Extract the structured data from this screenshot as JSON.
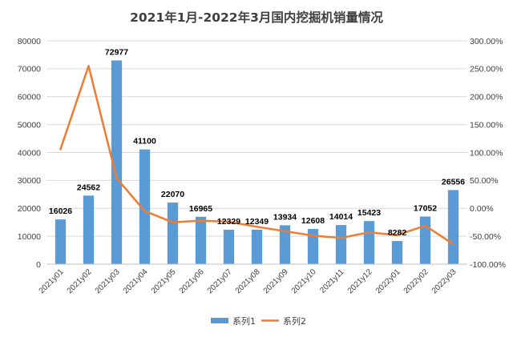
{
  "chart_data": {
    "type": "bar",
    "title": "2021年1月-2022年3月国内挖掘机销量情况",
    "categories": [
      "2021y01",
      "2021y02",
      "2021y03",
      "2021y04",
      "2021y05",
      "2021y06",
      "2021y07",
      "2021y08",
      "2021y09",
      "2021y10",
      "2021y11",
      "2021y12",
      "2022y01",
      "2022y02",
      "2022y03"
    ],
    "series": [
      {
        "name": "系列1",
        "type": "bar",
        "axis": "left",
        "color": "#5B9BD5",
        "values": [
          16026,
          24562,
          72977,
          41100,
          22070,
          16965,
          12329,
          12349,
          13934,
          12608,
          14014,
          15423,
          8282,
          17052,
          26556
        ],
        "labels": [
          "16026",
          "24562",
          "72977",
          "41100",
          "22070",
          "16965",
          "12329",
          "12349",
          "13934",
          "12608",
          "14014",
          "15423",
          "8282",
          "17052",
          "26556"
        ]
      },
      {
        "name": "系列2",
        "type": "line",
        "axis": "right",
        "color": "#ED7D31",
        "values": [
          106.0,
          255.0,
          54.0,
          -5.0,
          -25.0,
          -22.0,
          -24.0,
          -33.0,
          -41.0,
          -49.0,
          -53.0,
          -43.0,
          -48.0,
          -31.0,
          -64.0
        ]
      }
    ],
    "y_left": {
      "min": 0,
      "max": 80000,
      "ticks": [
        "0",
        "10000",
        "20000",
        "30000",
        "40000",
        "50000",
        "60000",
        "70000",
        "80000"
      ]
    },
    "y_right": {
      "min": -100,
      "max": 300,
      "ticks": [
        "-100.00%",
        "-50.00%",
        "0.00%",
        "50.00%",
        "100.00%",
        "150.00%",
        "200.00%",
        "250.00%",
        "300.00%"
      ]
    },
    "grid": true,
    "legend_position": "bottom"
  }
}
